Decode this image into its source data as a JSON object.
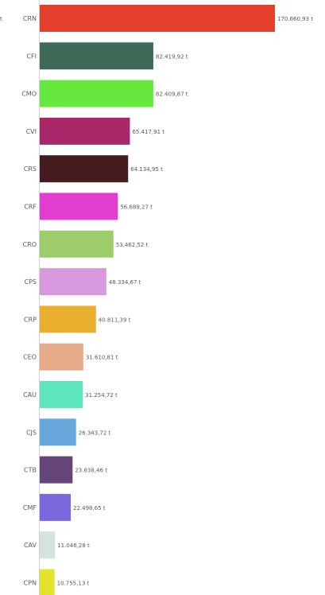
{
  "chart_data": {
    "type": "bar",
    "orientation": "horizontal",
    "title": "",
    "xlabel": "",
    "ylabel": "",
    "axis_unit_label": "t",
    "categories": [
      "CRN",
      "CFI",
      "CMO",
      "CVI",
      "CRS",
      "CRF",
      "CRO",
      "CPS",
      "CRP",
      "CEO",
      "CAU",
      "CJS",
      "CTB",
      "CMF",
      "CAV",
      "CPN"
    ],
    "values": [
      170660.93,
      82419.92,
      82409.87,
      65417.91,
      64134.95,
      56689.27,
      53462.52,
      48334.67,
      40811.39,
      31610.81,
      31254.72,
      26343.72,
      23838.46,
      22498.65,
      11046.28,
      10755.13
    ],
    "value_labels": [
      "170.660,93 t",
      "82.419,92 t",
      "82.409,87 t",
      "65.417,91 t",
      "64.134,95 t",
      "56.689,27 t",
      "53.462,52 t",
      "48.334,67 t",
      "40.811,39 t",
      "31.610,81 t",
      "31.254,72 t",
      "26.343,72 t",
      "23.838,46 t",
      "22.498,65 t",
      "11.046,28 t",
      "10.755,13 t"
    ],
    "colors": [
      "#e5402d",
      "#3d6b58",
      "#66e83f",
      "#a8286a",
      "#441c20",
      "#e33dd0",
      "#9dcc6b",
      "#d898de",
      "#e8b02e",
      "#e6ab88",
      "#5de6bc",
      "#69a8dc",
      "#64467a",
      "#7b68dc",
      "#d5e3e0",
      "#e4e32b"
    ],
    "xlim": [
      0,
      170660.93
    ],
    "grid": false,
    "legend": "none"
  }
}
